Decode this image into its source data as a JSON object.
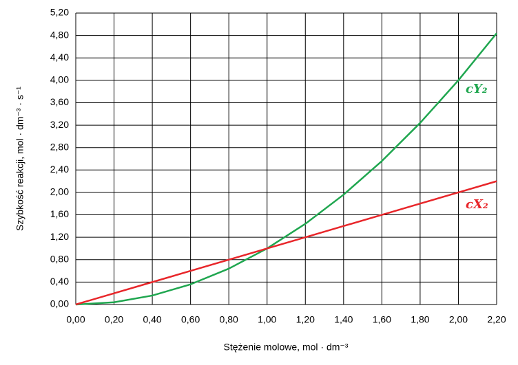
{
  "chart_data": {
    "type": "line",
    "y_label": "Szybkość reakcji, mol · dm⁻³ · s⁻¹",
    "x_label": "Stężenie molowe, mol · dm⁻³",
    "x": [
      0,
      0.2,
      0.4,
      0.6,
      0.8,
      1.0,
      1.2,
      1.4,
      1.6,
      1.8,
      2.0,
      2.2
    ],
    "series": [
      {
        "name": "cY₂",
        "color": "#1fa64f",
        "values": [
          0,
          0.04,
          0.16,
          0.36,
          0.64,
          1.0,
          1.44,
          1.96,
          2.56,
          3.24,
          4.0,
          4.84
        ]
      },
      {
        "name": "cX₂",
        "color": "#e8262a",
        "values": [
          0,
          0.2,
          0.4,
          0.6,
          0.8,
          1.0,
          1.2,
          1.4,
          1.6,
          1.8,
          2.0,
          2.2
        ]
      }
    ],
    "xlim": [
      0,
      2.2
    ],
    "ylim": [
      0,
      5.2
    ],
    "xticks": [
      {
        "value": 0,
        "label": "0,00"
      },
      {
        "value": 0.2,
        "label": "0,20"
      },
      {
        "value": 0.4,
        "label": "0,40"
      },
      {
        "value": 0.6,
        "label": "0,60"
      },
      {
        "value": 0.8,
        "label": "0,80"
      },
      {
        "value": 1.0,
        "label": "1,00"
      },
      {
        "value": 1.2,
        "label": "1,20"
      },
      {
        "value": 1.4,
        "label": "1,40"
      },
      {
        "value": 1.6,
        "label": "1,60"
      },
      {
        "value": 1.8,
        "label": "1,80"
      },
      {
        "value": 2.0,
        "label": "2,00"
      },
      {
        "value": 2.2,
        "label": "2,20"
      }
    ],
    "yticks": [
      {
        "value": 0,
        "label": "0,00"
      },
      {
        "value": 0.4,
        "label": "0,40"
      },
      {
        "value": 0.8,
        "label": "0,80"
      },
      {
        "value": 1.2,
        "label": "1,20"
      },
      {
        "value": 1.6,
        "label": "1,60"
      },
      {
        "value": 2.0,
        "label": "2,00"
      },
      {
        "value": 2.4,
        "label": "2,40"
      },
      {
        "value": 2.8,
        "label": "2,80"
      },
      {
        "value": 3.2,
        "label": "3,20"
      },
      {
        "value": 3.6,
        "label": "3,60"
      },
      {
        "value": 4.0,
        "label": "4,00"
      },
      {
        "value": 4.4,
        "label": "4,40"
      },
      {
        "value": 4.8,
        "label": "4,80"
      },
      {
        "value": 5.2,
        "label": "5,20"
      }
    ],
    "grid": true
  }
}
